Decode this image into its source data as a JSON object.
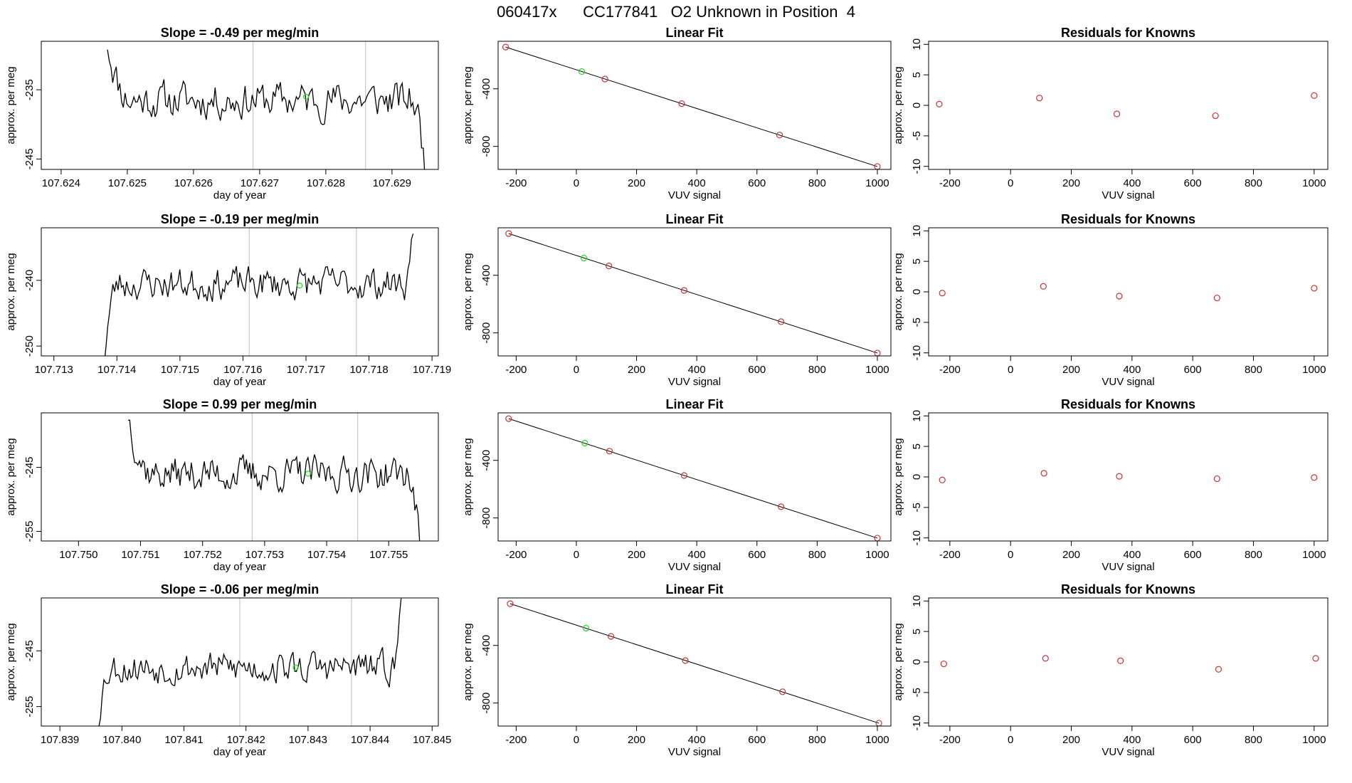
{
  "figure": {
    "title": "060417x      CC177841   O2 Unknown in Position  4",
    "colors": {
      "trace": "#000000",
      "known_point": "#cc3333",
      "unknown_point": "#22dd22",
      "vline": "#c8c8c8"
    }
  },
  "chart_data": [
    {
      "type": "line",
      "panel": "time-series",
      "row": 1,
      "title": "Slope =  -0.49  per meg/min",
      "xlabel": "day of year",
      "ylabel": "approx. per meg",
      "xlim": [
        107.6237,
        107.6297
      ],
      "ylim": [
        -246.5,
        -228
      ],
      "xticks": [
        107.624,
        107.625,
        107.626,
        107.627,
        107.628,
        107.629
      ],
      "xtick_labels": [
        "107.624",
        "107.625",
        "107.626",
        "107.627",
        "107.628",
        "107.629"
      ],
      "yticks": [
        -235,
        -245
      ],
      "ytick_labels": [
        "-235",
        "-245"
      ],
      "vlines": [
        107.6269,
        107.6286
      ],
      "trace": {
        "x_start": 107.6247,
        "x_end": 107.6295,
        "start_level": -228,
        "level": -236.5,
        "amplitude": 2.6,
        "end_level": -246.5,
        "settle": 0.08,
        "n": 180,
        "seed": 11
      },
      "unknown_point": [
        107.6277,
        -236
      ]
    },
    {
      "type": "line",
      "panel": "linear-fit",
      "row": 1,
      "title": "Linear Fit",
      "xlabel": "VUV signal",
      "ylabel": "approx. per meg",
      "xlim": [
        -260,
        1045
      ],
      "ylim": [
        -960,
        -70
      ],
      "xticks": [
        -200,
        0,
        200,
        400,
        600,
        800,
        1000
      ],
      "xtick_labels": [
        "-200",
        "0",
        "200",
        "400",
        "600",
        "800",
        "1000"
      ],
      "yticks": [
        -400,
        -800
      ],
      "ytick_labels": [
        "-400",
        "-800"
      ],
      "line": [
        [
          -235,
          -110
        ],
        [
          1000,
          -940
        ]
      ],
      "known_points": [
        [
          -235,
          -110
        ],
        [
          95,
          -332
        ],
        [
          350,
          -503
        ],
        [
          675,
          -721
        ],
        [
          1000,
          -940
        ]
      ],
      "unknown_point": [
        18,
        -280
      ]
    },
    {
      "type": "scatter",
      "panel": "residuals",
      "row": 1,
      "title": "Residuals for Knowns",
      "xlabel": "VUV signal",
      "ylabel": "approx. per meg",
      "xlim": [
        -270,
        1045
      ],
      "ylim": [
        -10.5,
        10.5
      ],
      "xticks": [
        -200,
        0,
        200,
        400,
        600,
        800,
        1000
      ],
      "xtick_labels": [
        "-200",
        "0",
        "200",
        "400",
        "600",
        "800",
        "1000"
      ],
      "yticks": [
        10,
        5,
        0,
        -5,
        -10
      ],
      "ytick_labels": [
        "10",
        "5",
        "0",
        "-5",
        "-10"
      ],
      "points": [
        [
          -235,
          0.2
        ],
        [
          95,
          1.2
        ],
        [
          350,
          -1.4
        ],
        [
          675,
          -1.7
        ],
        [
          1000,
          1.6
        ]
      ]
    },
    {
      "type": "line",
      "panel": "time-series",
      "row": 2,
      "title": "Slope =  -0.19  per meg/min",
      "xlabel": "day of year",
      "ylabel": "approx. per meg",
      "xlim": [
        107.7128,
        107.7191
      ],
      "ylim": [
        -251.5,
        -232
      ],
      "xticks": [
        107.713,
        107.714,
        107.715,
        107.716,
        107.717,
        107.718,
        107.719
      ],
      "xtick_labels": [
        "107.713",
        "107.714",
        "107.715",
        "107.716",
        "107.717",
        "107.718",
        "107.719"
      ],
      "yticks": [
        -240,
        -250
      ],
      "ytick_labels": [
        "-240",
        "-250"
      ],
      "vlines": [
        107.7161,
        107.7178
      ],
      "trace": {
        "x_start": 107.7138,
        "x_end": 107.7187,
        "start_level": -251.5,
        "level": -240.5,
        "amplitude": 2.4,
        "end_level": -232,
        "settle": 0.05,
        "n": 180,
        "seed": 23
      },
      "unknown_point": [
        107.7169,
        -240.8
      ]
    },
    {
      "type": "line",
      "panel": "linear-fit",
      "row": 2,
      "title": "Linear Fit",
      "xlabel": "VUV signal",
      "ylabel": "approx. per meg",
      "xlim": [
        -260,
        1045
      ],
      "ylim": [
        -960,
        -70
      ],
      "xticks": [
        -200,
        0,
        200,
        400,
        600,
        800,
        1000
      ],
      "xtick_labels": [
        "-200",
        "0",
        "200",
        "400",
        "600",
        "800",
        "1000"
      ],
      "yticks": [
        -400,
        -800
      ],
      "ytick_labels": [
        "-400",
        "-800"
      ],
      "line": [
        [
          -225,
          -110
        ],
        [
          1000,
          -940
        ]
      ],
      "known_points": [
        [
          -225,
          -110
        ],
        [
          108,
          -335
        ],
        [
          358,
          -505
        ],
        [
          680,
          -722
        ],
        [
          1000,
          -940
        ]
      ],
      "unknown_point": [
        25,
        -280
      ]
    },
    {
      "type": "scatter",
      "panel": "residuals",
      "row": 2,
      "title": "Residuals for Knowns",
      "xlabel": "VUV signal",
      "ylabel": "approx. per meg",
      "xlim": [
        -270,
        1045
      ],
      "ylim": [
        -10.5,
        10.5
      ],
      "xticks": [
        -200,
        0,
        200,
        400,
        600,
        800,
        1000
      ],
      "xtick_labels": [
        "-200",
        "0",
        "200",
        "400",
        "600",
        "800",
        "1000"
      ],
      "yticks": [
        10,
        5,
        0,
        -5,
        -10
      ],
      "ytick_labels": [
        "10",
        "5",
        "0",
        "-5",
        "-10"
      ],
      "points": [
        [
          -225,
          -0.2
        ],
        [
          108,
          0.9
        ],
        [
          358,
          -0.7
        ],
        [
          680,
          -1.0
        ],
        [
          1000,
          0.6
        ]
      ]
    },
    {
      "type": "line",
      "panel": "time-series",
      "row": 3,
      "title": "Slope =  0.99  per meg/min",
      "xlabel": "day of year",
      "ylabel": "approx. per meg",
      "xlim": [
        107.7494,
        107.7558
      ],
      "ylim": [
        -256.5,
        -236.5
      ],
      "xticks": [
        107.75,
        107.751,
        107.752,
        107.753,
        107.754,
        107.755
      ],
      "xtick_labels": [
        "107.750",
        "107.751",
        "107.752",
        "107.753",
        "107.754",
        "107.755"
      ],
      "yticks": [
        -245,
        -255
      ],
      "ytick_labels": [
        "-245",
        "-255"
      ],
      "vlines": [
        107.7528,
        107.7545
      ],
      "trace": {
        "x_start": 107.7508,
        "x_end": 107.7555,
        "start_level": -236.5,
        "level": -246,
        "amplitude": 2.6,
        "end_level": -256.5,
        "settle": 0.09,
        "n": 180,
        "seed": 37
      },
      "unknown_point": [
        107.7537,
        -246
      ]
    },
    {
      "type": "line",
      "panel": "linear-fit",
      "row": 3,
      "title": "Linear Fit",
      "xlabel": "VUV signal",
      "ylabel": "approx. per meg",
      "xlim": [
        -260,
        1045
      ],
      "ylim": [
        -960,
        -70
      ],
      "xticks": [
        -200,
        0,
        200,
        400,
        600,
        800,
        1000
      ],
      "xtick_labels": [
        "-200",
        "0",
        "200",
        "400",
        "600",
        "800",
        "1000"
      ],
      "yticks": [
        -400,
        -800
      ],
      "ytick_labels": [
        "-400",
        "-800"
      ],
      "line": [
        [
          -225,
          -110
        ],
        [
          1000,
          -940
        ]
      ],
      "known_points": [
        [
          -225,
          -110
        ],
        [
          110,
          -336
        ],
        [
          358,
          -505
        ],
        [
          680,
          -722
        ],
        [
          1000,
          -940
        ]
      ],
      "unknown_point": [
        28,
        -280
      ]
    },
    {
      "type": "scatter",
      "panel": "residuals",
      "row": 3,
      "title": "Residuals for Knowns",
      "xlabel": "VUV signal",
      "ylabel": "approx. per meg",
      "xlim": [
        -270,
        1045
      ],
      "ylim": [
        -10.5,
        10.5
      ],
      "xticks": [
        -200,
        0,
        200,
        400,
        600,
        800,
        1000
      ],
      "xtick_labels": [
        "-200",
        "0",
        "200",
        "400",
        "600",
        "800",
        "1000"
      ],
      "yticks": [
        10,
        5,
        0,
        -5,
        -10
      ],
      "ytick_labels": [
        "10",
        "5",
        "0",
        "-5",
        "-10"
      ],
      "points": [
        [
          -225,
          -0.5
        ],
        [
          110,
          0.6
        ],
        [
          358,
          0.1
        ],
        [
          680,
          -0.3
        ],
        [
          1000,
          -0.1
        ]
      ]
    },
    {
      "type": "line",
      "panel": "time-series",
      "row": 4,
      "title": "Slope =  -0.06  per meg/min",
      "xlabel": "day of year",
      "ylabel": "approx. per meg",
      "xlim": [
        107.8387,
        107.8451
      ],
      "ylim": [
        -258.5,
        -235.5
      ],
      "xticks": [
        107.839,
        107.84,
        107.841,
        107.842,
        107.843,
        107.844,
        107.845
      ],
      "xtick_labels": [
        "107.839",
        "107.840",
        "107.841",
        "107.842",
        "107.843",
        "107.844",
        "107.845"
      ],
      "yticks": [
        -245,
        -255
      ],
      "ytick_labels": [
        "-245",
        "-255"
      ],
      "vlines": [
        107.8419,
        107.8437
      ],
      "trace": {
        "x_start": 107.8396,
        "x_end": 107.8445,
        "start_level": -258.5,
        "level": -248,
        "amplitude": 2.8,
        "end_level": -235.5,
        "settle": 0.05,
        "n": 180,
        "seed": 53
      },
      "unknown_point": [
        107.8428,
        -248
      ]
    },
    {
      "type": "line",
      "panel": "linear-fit",
      "row": 4,
      "title": "Linear Fit",
      "xlabel": "VUV signal",
      "ylabel": "approx. per meg",
      "xlim": [
        -260,
        1045
      ],
      "ylim": [
        -960,
        -70
      ],
      "xticks": [
        -200,
        0,
        200,
        400,
        600,
        800,
        1000
      ],
      "xtick_labels": [
        "-200",
        "0",
        "200",
        "400",
        "600",
        "800",
        "1000"
      ],
      "yticks": [
        -400,
        -800
      ],
      "ytick_labels": [
        "-400",
        "-800"
      ],
      "line": [
        [
          -220,
          -110
        ],
        [
          1005,
          -940
        ]
      ],
      "known_points": [
        [
          -220,
          -110
        ],
        [
          115,
          -337
        ],
        [
          362,
          -505
        ],
        [
          685,
          -722
        ],
        [
          1005,
          -940
        ]
      ],
      "unknown_point": [
        32,
        -280
      ]
    },
    {
      "type": "scatter",
      "panel": "residuals",
      "row": 4,
      "title": "Residuals for Knowns",
      "xlabel": "VUV signal",
      "ylabel": "approx. per meg",
      "xlim": [
        -270,
        1045
      ],
      "ylim": [
        -10.5,
        10.5
      ],
      "xticks": [
        -200,
        0,
        200,
        400,
        600,
        800,
        1000
      ],
      "xtick_labels": [
        "-200",
        "0",
        "200",
        "400",
        "600",
        "800",
        "1000"
      ],
      "yticks": [
        10,
        5,
        0,
        -5,
        -10
      ],
      "ytick_labels": [
        "10",
        "5",
        "0",
        "-5",
        "-10"
      ],
      "points": [
        [
          -220,
          -0.3
        ],
        [
          115,
          0.6
        ],
        [
          362,
          0.2
        ],
        [
          685,
          -1.2
        ],
        [
          1005,
          0.6
        ]
      ]
    }
  ]
}
